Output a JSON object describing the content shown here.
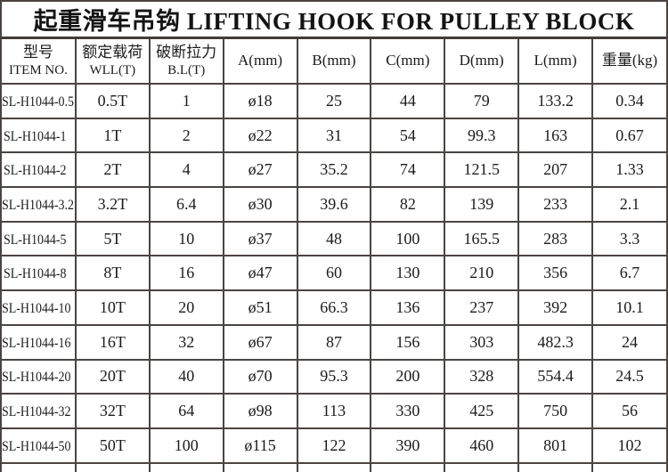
{
  "colors": {
    "background": "#ffffff",
    "border": "#4a4442",
    "text": "#1b1b1b"
  },
  "title": {
    "text": "起重滑车吊钩 LIFTING HOOK FOR PULLEY BLOCK"
  },
  "table": {
    "header": {
      "item_no": {
        "zh": "型号",
        "en": "ITEM NO."
      },
      "wll": {
        "zh": "额定载荷",
        "en": "WLL(T)"
      },
      "bl": {
        "zh": "破断拉力",
        "en": "B.L(T)"
      },
      "a": "A(mm)",
      "b": "B(mm)",
      "c": "C(mm)",
      "d": "D(mm)",
      "l": "L(mm)",
      "weight": "重量(kg)"
    },
    "rows": [
      {
        "item_no": "SL-H1044-0.5",
        "wll": "0.5T",
        "bl": "1",
        "a": "ø18",
        "b": "25",
        "c": "44",
        "d": "79",
        "l": "133.2",
        "weight": "0.34"
      },
      {
        "item_no": "SL-H1044-1",
        "wll": "1T",
        "bl": "2",
        "a": "ø22",
        "b": "31",
        "c": "54",
        "d": "99.3",
        "l": "163",
        "weight": "0.67"
      },
      {
        "item_no": "SL-H1044-2",
        "wll": "2T",
        "bl": "4",
        "a": "ø27",
        "b": "35.2",
        "c": "74",
        "d": "121.5",
        "l": "207",
        "weight": "1.33"
      },
      {
        "item_no": "SL-H1044-3.2",
        "wll": "3.2T",
        "bl": "6.4",
        "a": "ø30",
        "b": "39.6",
        "c": "82",
        "d": "139",
        "l": "233",
        "weight": "2.1"
      },
      {
        "item_no": "SL-H1044-5",
        "wll": "5T",
        "bl": "10",
        "a": "ø37",
        "b": "48",
        "c": "100",
        "d": "165.5",
        "l": "283",
        "weight": "3.3"
      },
      {
        "item_no": "SL-H1044-8",
        "wll": "8T",
        "bl": "16",
        "a": "ø47",
        "b": "60",
        "c": "130",
        "d": "210",
        "l": "356",
        "weight": "6.7"
      },
      {
        "item_no": "SL-H1044-10",
        "wll": "10T",
        "bl": "20",
        "a": "ø51",
        "b": "66.3",
        "c": "136",
        "d": "237",
        "l": "392",
        "weight": "10.1"
      },
      {
        "item_no": "SL-H1044-16",
        "wll": "16T",
        "bl": "32",
        "a": "ø67",
        "b": "87",
        "c": "156",
        "d": "303",
        "l": "482.3",
        "weight": "24"
      },
      {
        "item_no": "SL-H1044-20",
        "wll": "20T",
        "bl": "40",
        "a": "ø70",
        "b": "95.3",
        "c": "200",
        "d": "328",
        "l": "554.4",
        "weight": "24.5"
      },
      {
        "item_no": "SL-H1044-32",
        "wll": "32T",
        "bl": "64",
        "a": "ø98",
        "b": "113",
        "c": "330",
        "d": "425",
        "l": "750",
        "weight": "56"
      },
      {
        "item_no": "SL-H1044-50",
        "wll": "50T",
        "bl": "100",
        "a": "ø115",
        "b": "122",
        "c": "390",
        "d": "460",
        "l": "801",
        "weight": "102"
      }
    ]
  }
}
